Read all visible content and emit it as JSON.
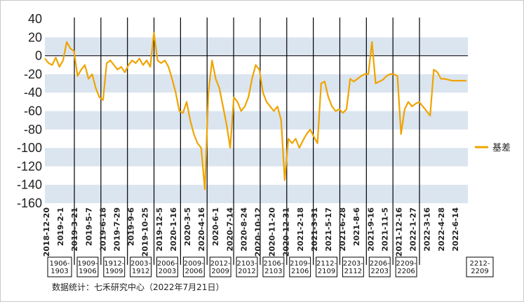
{
  "chart_data": {
    "type": "line",
    "colors": {
      "line": "#f0a400",
      "band": "#dbe5f0",
      "vline": "#000000"
    },
    "ylim": [
      -160,
      40
    ],
    "yticks": [
      40,
      20,
      0,
      -20,
      -40,
      -60,
      -80,
      -100,
      -120,
      -140,
      -160
    ],
    "x_tick_labels": [
      "2018-12-20",
      "2019-2-1",
      "2019-3-21",
      "2019-5-7",
      "2019-6-18",
      "2019-7-29",
      "2019-9-6",
      "2019-10-25",
      "2019-12-5",
      "2020-1-16",
      "2020-3-5",
      "2020-4-16",
      "2020-6-1",
      "2020-7-14",
      "2020-8-24",
      "2020-10-12",
      "2020-11-20",
      "2020-12-31",
      "2021-2-18",
      "2021-3-31",
      "2021-5-17",
      "2021-6-28",
      "2021-8-6",
      "2021-9-16",
      "2021-11-5",
      "2021-12-16",
      "2022-1-27",
      "2022-3-16",
      "2022-4-28",
      "2022-6-14"
    ],
    "series": [
      {
        "name": "基差",
        "x_index": [
          0,
          1,
          2,
          3,
          4,
          5,
          6,
          7,
          8,
          9,
          10,
          11,
          12,
          13,
          14,
          15,
          16,
          17,
          18,
          19,
          20,
          21,
          22,
          23,
          24,
          25,
          26,
          27,
          28,
          29,
          30,
          31,
          32,
          33,
          34,
          35,
          36,
          37,
          38,
          39,
          40,
          41,
          42,
          43,
          44,
          45,
          46,
          47,
          48,
          49,
          50,
          51,
          52,
          53,
          54,
          55,
          56,
          57,
          58,
          59,
          60,
          61,
          62,
          63,
          64,
          65,
          66,
          67,
          68,
          69,
          70,
          71,
          72,
          73,
          74,
          75,
          76,
          77,
          78,
          79,
          80,
          81,
          82,
          83,
          84,
          85,
          86,
          87,
          88,
          89,
          90,
          91,
          92,
          93,
          94,
          95,
          96,
          97,
          98,
          99,
          100,
          101,
          102,
          103,
          104,
          105,
          106,
          107,
          108,
          109,
          110,
          111,
          112,
          113,
          114,
          115,
          116
        ],
        "values": [
          -3,
          -8,
          -10,
          -2,
          -12,
          -5,
          15,
          8,
          5,
          -22,
          -15,
          -10,
          -25,
          -20,
          -35,
          -45,
          -48,
          -8,
          -5,
          -10,
          -15,
          -12,
          -18,
          -10,
          -5,
          -8,
          -3,
          -10,
          -5,
          -12,
          25,
          -5,
          -8,
          -5,
          -12,
          -25,
          -40,
          -60,
          -62,
          -50,
          -70,
          -85,
          -95,
          -100,
          -145,
          -40,
          -5,
          -25,
          -35,
          -55,
          -75,
          -100,
          -45,
          -50,
          -60,
          -55,
          -45,
          -25,
          -10,
          -15,
          -40,
          -50,
          -55,
          -60,
          -55,
          -70,
          -135,
          -90,
          -95,
          -90,
          -100,
          -92,
          -85,
          -80,
          -88,
          -95,
          -30,
          -28,
          -45,
          -55,
          -60,
          -58,
          -62,
          -58,
          -25,
          -28,
          -25,
          -22,
          -20,
          -20,
          15,
          -30,
          -28,
          -26,
          -22,
          -20,
          -20,
          -22,
          -85,
          -58,
          -50,
          -55,
          -52,
          -50,
          -55,
          -60,
          -65,
          -15,
          -18,
          -25,
          -25,
          -26,
          -27,
          -27,
          -27,
          -27,
          -27
        ]
      }
    ],
    "contract_boxes": [
      {
        "label": "1906-\n1903"
      },
      {
        "label": "1909-\n1906"
      },
      {
        "label": "1912-\n1909"
      },
      {
        "label": "2003-\n1912"
      },
      {
        "label": "2006-\n2003"
      },
      {
        "label": "2009-\n2006"
      },
      {
        "label": "2012-\n2009"
      },
      {
        "label": "2103-\n2012"
      },
      {
        "label": "2106-\n2103"
      },
      {
        "label": "2109-\n2106"
      },
      {
        "label": "2112-\n2109"
      },
      {
        "label": "2203-\n2112"
      },
      {
        "label": "2206-\n2203"
      },
      {
        "label": "2209-\n2206"
      },
      {
        "label": "2212-\n2209"
      }
    ],
    "legend": {
      "label": "基差",
      "position": "right"
    },
    "source": "数据统计：七禾研究中心（2022年7月21日）"
  }
}
